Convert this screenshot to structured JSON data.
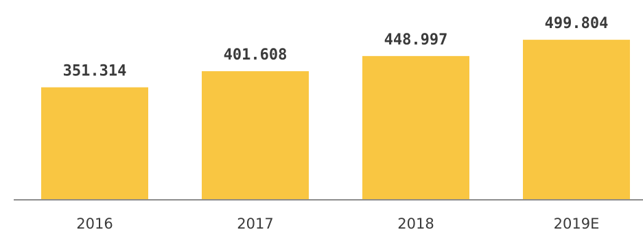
{
  "chart_data": {
    "type": "bar",
    "categories": [
      "2016",
      "2017",
      "2018",
      "2019E"
    ],
    "values": [
      351.314,
      401.608,
      448.997,
      499.804
    ],
    "value_labels": [
      "351.314",
      "401.608",
      "448.997",
      "499.804"
    ],
    "title": "",
    "xlabel": "",
    "ylabel": "",
    "ylim": [
      0,
      560
    ],
    "grid": false,
    "legend": "none"
  },
  "colors": {
    "bar": "#F9C642",
    "axis": "#8C8C8C",
    "text": "#3A3A3A"
  }
}
